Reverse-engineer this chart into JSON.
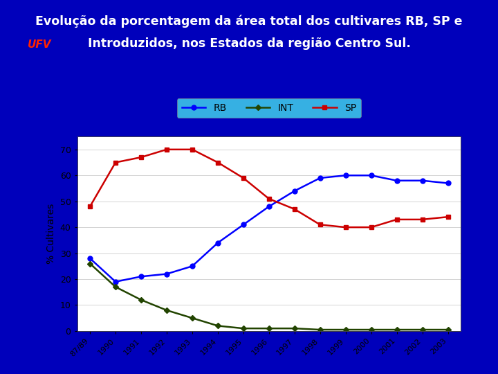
{
  "title_line1": "Evolução da porcentagem da área total dos cultivares RB, SP e",
  "title_line2": "Introduzidos, nos Estados da região Centro Sul.",
  "title_color": "#ffffff",
  "title_fontsize": 12.5,
  "ufv_color": "#ff2200",
  "bg_outer": "#0000bb",
  "bg_plot_area": "#44ddee",
  "bg_chart": "#ffffff",
  "ylabel": "% Cultivares",
  "ylabel_fontsize": 10,
  "x_labels": [
    "87/89",
    "1990",
    "1991",
    "1992",
    "1993",
    "1994",
    "1995",
    "1996",
    "1997",
    "1998",
    "1999",
    "2000",
    "2001",
    "2002",
    "2003"
  ],
  "ylim": [
    0,
    75
  ],
  "yticks": [
    0,
    10,
    20,
    30,
    40,
    50,
    60,
    70
  ],
  "RB": [
    28,
    19,
    21,
    22,
    25,
    34,
    41,
    48,
    54,
    59,
    60,
    60,
    58,
    58,
    57
  ],
  "INT": [
    26,
    17,
    12,
    8,
    5,
    2,
    1,
    1,
    1,
    0.5,
    0.5,
    0.5,
    0.5,
    0.5,
    0.5
  ],
  "SP": [
    48,
    65,
    67,
    70,
    70,
    65,
    59,
    51,
    47,
    41,
    40,
    40,
    43,
    43,
    44
  ],
  "RB_color": "#0000ff",
  "INT_color": "#224400",
  "SP_color": "#cc0000",
  "marker_size": 5,
  "line_width": 1.8
}
